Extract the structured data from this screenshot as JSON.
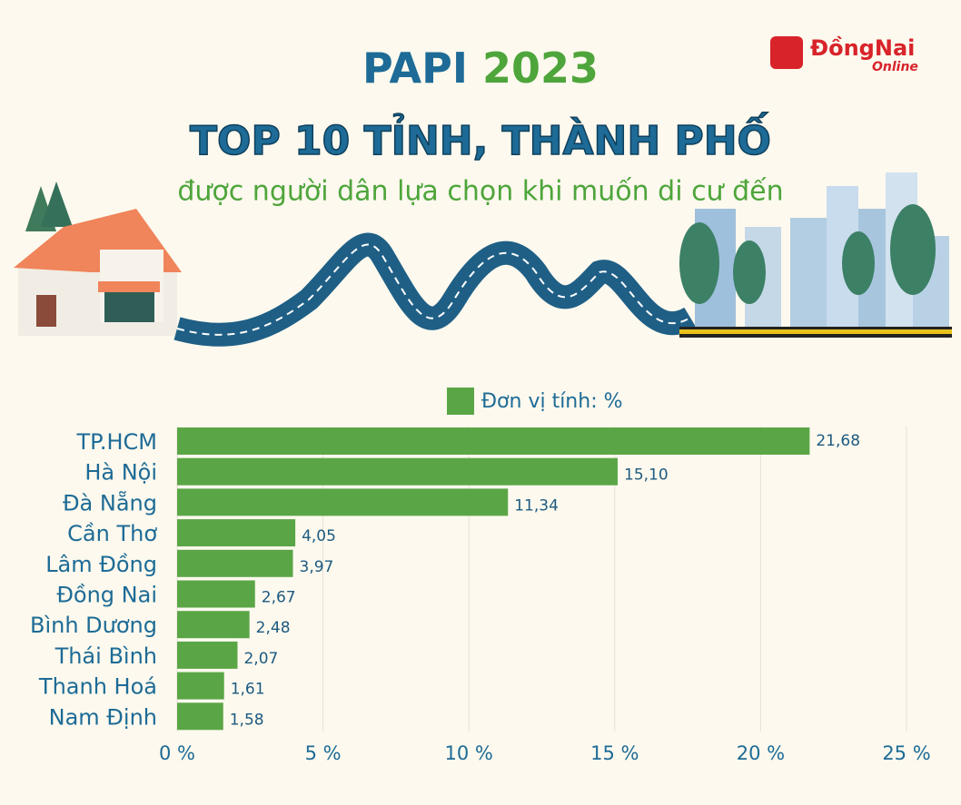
{
  "logo": {
    "name": "ĐồngNai",
    "suffix": "Online"
  },
  "chart_data": {
    "type": "bar",
    "orientation": "horizontal",
    "title_parts": [
      "PAPI",
      "2023"
    ],
    "subtitle": "TOP 10 TỈNH, THÀNH PHỐ",
    "subtitle2": "được người dân lựa chọn khi muốn di cư đến",
    "categories": [
      "TP.HCM",
      "Hà Nội",
      "Đà Nẵng",
      "Cần Thơ",
      "Lâm Đồng",
      "Đồng Nai",
      "Bình Dương",
      "Thái Bình",
      "Thanh Hoá",
      "Nam Định"
    ],
    "series": [
      {
        "name": "Đơn vị tính: %",
        "color": "#5aa646",
        "values": [
          21.68,
          15.1,
          11.34,
          4.05,
          3.97,
          2.67,
          2.48,
          2.07,
          1.61,
          1.58
        ],
        "value_labels": [
          "21,68",
          "15,10",
          "11,34",
          "4,05",
          "3,97",
          "2,67",
          "2,48",
          "2,07",
          "1,61",
          "1,58"
        ]
      }
    ],
    "xlim": [
      0,
      25
    ],
    "xticks": [
      {
        "value": 0,
        "label": "0 %"
      },
      {
        "value": 5,
        "label": "5 %"
      },
      {
        "value": 10,
        "label": "10 %"
      },
      {
        "value": 15,
        "label": "15 %"
      },
      {
        "value": 20,
        "label": "20 %"
      },
      {
        "value": 25,
        "label": "25 %"
      }
    ],
    "grid": true
  }
}
